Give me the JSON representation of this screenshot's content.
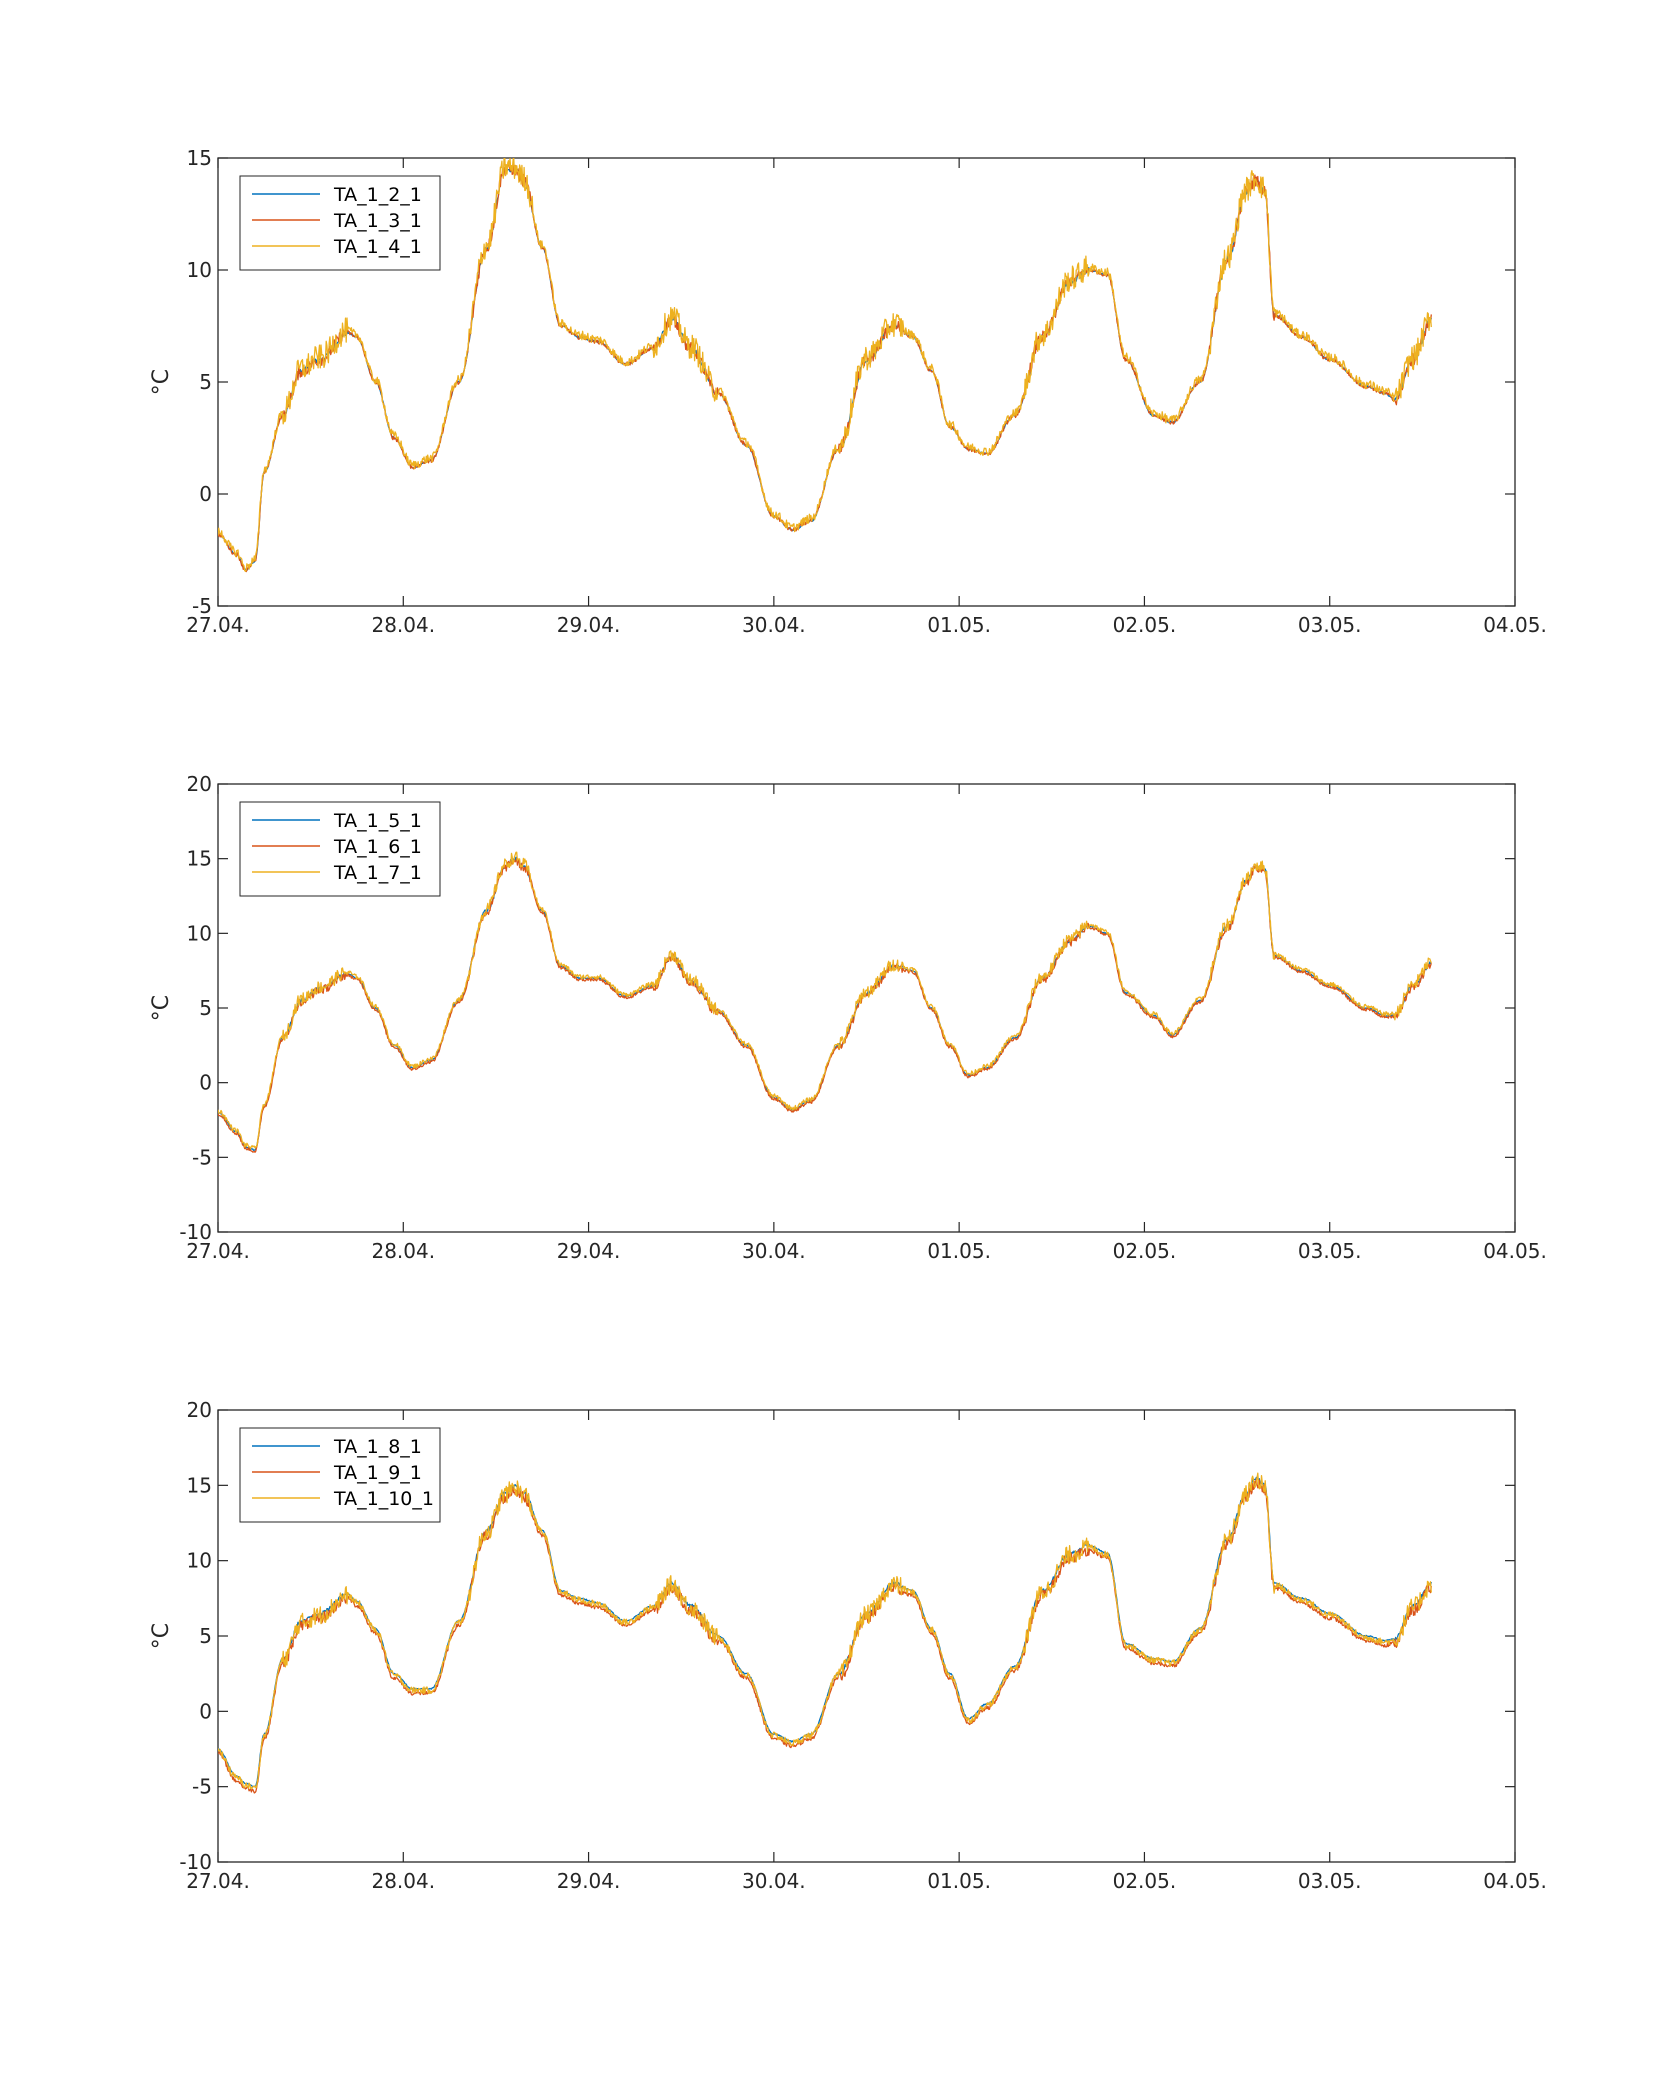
{
  "colors": {
    "s1": "#0072BD",
    "s2": "#D95319",
    "s3": "#EDB120",
    "axis": "#262626"
  },
  "x_tick_labels": [
    "27.04.",
    "28.04.",
    "29.04.",
    "30.04.",
    "01.05.",
    "02.05.",
    "03.05.",
    "04.05."
  ],
  "chart_data": [
    {
      "type": "line",
      "ylabel": "°C",
      "xlim": [
        0,
        7
      ],
      "ylim": [
        -5,
        15
      ],
      "yticks": [
        -5,
        0,
        5,
        10,
        15
      ],
      "grid": false,
      "legend_position": "top-left",
      "x_unit": "days since 27.04.",
      "series": [
        {
          "name": "TA_1_2_1",
          "color": "#0072BD",
          "noise": 0.0,
          "offset": 0.0
        },
        {
          "name": "TA_1_3_1",
          "color": "#D95319",
          "noise": 0.15,
          "offset": 0.0
        },
        {
          "name": "TA_1_4_1",
          "color": "#EDB120",
          "noise": 0.45,
          "offset": 0.1
        }
      ],
      "x": [
        0,
        0.1,
        0.15,
        0.2,
        0.25,
        0.35,
        0.45,
        0.55,
        0.7,
        0.75,
        0.85,
        0.95,
        1.05,
        1.15,
        1.3,
        1.45,
        1.55,
        1.6,
        1.65,
        1.75,
        1.85,
        1.95,
        2.05,
        2.2,
        2.35,
        2.45,
        2.55,
        2.7,
        2.85,
        3.0,
        3.1,
        3.2,
        3.35,
        3.5,
        3.65,
        3.75,
        3.85,
        3.95,
        4.05,
        4.15,
        4.3,
        4.45,
        4.6,
        4.7,
        4.8,
        4.9,
        5.05,
        5.15,
        5.3,
        5.45,
        5.55,
        5.6,
        5.65,
        5.7,
        5.85,
        6.0,
        6.2,
        6.3,
        6.35,
        6.45,
        6.55
      ],
      "values": [
        -1.8,
        -2.7,
        -3.4,
        -3.0,
        1.0,
        3.5,
        5.5,
        6.0,
        7.2,
        7.0,
        5.0,
        2.5,
        1.2,
        1.5,
        5.0,
        11.0,
        14.5,
        14.5,
        14.0,
        11.0,
        7.5,
        7.0,
        6.8,
        5.8,
        6.5,
        7.8,
        6.5,
        4.5,
        2.2,
        -1.0,
        -1.6,
        -1.2,
        2.0,
        6.0,
        7.5,
        7.0,
        5.5,
        3.0,
        2.0,
        1.8,
        3.5,
        7.0,
        9.5,
        10.0,
        9.8,
        6.0,
        3.5,
        3.2,
        5.0,
        10.5,
        13.5,
        14.0,
        13.5,
        8.0,
        7.0,
        6.0,
        4.8,
        4.5,
        4.2,
        6.0,
        7.8
      ]
    },
    {
      "type": "line",
      "ylabel": "°C",
      "xlim": [
        0,
        7
      ],
      "ylim": [
        -10,
        20
      ],
      "yticks": [
        -10,
        -5,
        0,
        5,
        10,
        15,
        20
      ],
      "grid": false,
      "legend_position": "top-left",
      "x_unit": "days since 27.04.",
      "series": [
        {
          "name": "TA_1_5_1",
          "color": "#0072BD",
          "noise": 0.0,
          "offset": 0.0
        },
        {
          "name": "TA_1_6_1",
          "color": "#D95319",
          "noise": 0.15,
          "offset": -0.1
        },
        {
          "name": "TA_1_7_1",
          "color": "#EDB120",
          "noise": 0.3,
          "offset": 0.1
        }
      ],
      "x": [
        0,
        0.1,
        0.15,
        0.2,
        0.25,
        0.35,
        0.45,
        0.55,
        0.7,
        0.75,
        0.85,
        0.95,
        1.05,
        1.15,
        1.3,
        1.45,
        1.55,
        1.6,
        1.65,
        1.75,
        1.85,
        1.95,
        2.05,
        2.2,
        2.35,
        2.45,
        2.55,
        2.7,
        2.85,
        3.0,
        3.1,
        3.2,
        3.35,
        3.5,
        3.65,
        3.75,
        3.85,
        3.95,
        4.05,
        4.15,
        4.3,
        4.45,
        4.6,
        4.7,
        4.8,
        4.9,
        5.05,
        5.15,
        5.3,
        5.45,
        5.55,
        5.6,
        5.65,
        5.7,
        5.85,
        6.0,
        6.2,
        6.3,
        6.35,
        6.45,
        6.55
      ],
      "values": [
        -2.0,
        -3.3,
        -4.3,
        -4.5,
        -1.5,
        3.0,
        5.5,
        6.3,
        7.3,
        7.0,
        5.0,
        2.5,
        1.0,
        1.5,
        5.5,
        11.5,
        14.5,
        15.0,
        14.5,
        11.5,
        7.8,
        7.0,
        7.0,
        5.8,
        6.5,
        8.5,
        6.8,
        4.8,
        2.5,
        -1.0,
        -1.8,
        -1.2,
        2.5,
        6.0,
        7.8,
        7.5,
        5.0,
        2.5,
        0.5,
        1.0,
        3.0,
        7.0,
        9.5,
        10.5,
        10.0,
        6.0,
        4.5,
        3.2,
        5.5,
        10.5,
        13.5,
        14.5,
        14.3,
        8.5,
        7.5,
        6.5,
        5.0,
        4.5,
        4.5,
        6.5,
        8.0
      ]
    },
    {
      "type": "line",
      "ylabel": "°C",
      "xlim": [
        0,
        7
      ],
      "ylim": [
        -10,
        20
      ],
      "yticks": [
        -10,
        -5,
        0,
        5,
        10,
        15,
        20
      ],
      "grid": false,
      "legend_position": "top-left",
      "x_unit": "days since 27.04.",
      "series": [
        {
          "name": "TA_1_8_1",
          "color": "#0072BD",
          "noise": 0.0,
          "offset": 0.0
        },
        {
          "name": "TA_1_9_1",
          "color": "#D95319",
          "noise": 0.25,
          "offset": -0.3
        },
        {
          "name": "TA_1_10_1",
          "color": "#EDB120",
          "noise": 0.5,
          "offset": -0.1
        }
      ],
      "x": [
        0,
        0.1,
        0.15,
        0.2,
        0.25,
        0.35,
        0.45,
        0.55,
        0.7,
        0.75,
        0.85,
        0.95,
        1.05,
        1.15,
        1.3,
        1.45,
        1.55,
        1.6,
        1.65,
        1.75,
        1.85,
        1.95,
        2.05,
        2.2,
        2.35,
        2.45,
        2.55,
        2.7,
        2.85,
        3.0,
        3.1,
        3.2,
        3.35,
        3.5,
        3.65,
        3.75,
        3.85,
        3.95,
        4.05,
        4.15,
        4.3,
        4.45,
        4.6,
        4.7,
        4.8,
        4.9,
        5.05,
        5.15,
        5.3,
        5.45,
        5.55,
        5.6,
        5.65,
        5.7,
        5.85,
        6.0,
        6.2,
        6.3,
        6.35,
        6.45,
        6.55
      ],
      "values": [
        -2.5,
        -4.3,
        -4.8,
        -5.0,
        -1.5,
        3.5,
        6.0,
        6.5,
        7.8,
        7.3,
        5.5,
        2.5,
        1.5,
        1.5,
        6.0,
        12.0,
        14.5,
        15.0,
        14.5,
        12.0,
        8.0,
        7.5,
        7.2,
        6.0,
        7.0,
        8.5,
        7.0,
        5.0,
        2.5,
        -1.5,
        -2.0,
        -1.5,
        2.5,
        6.5,
        8.5,
        8.0,
        5.5,
        2.5,
        -0.5,
        0.5,
        3.0,
        8.0,
        10.5,
        11.0,
        10.5,
        4.5,
        3.5,
        3.3,
        5.5,
        11.5,
        14.5,
        15.5,
        15.0,
        8.5,
        7.5,
        6.5,
        5.0,
        4.7,
        4.8,
        7.0,
        8.5
      ]
    }
  ]
}
